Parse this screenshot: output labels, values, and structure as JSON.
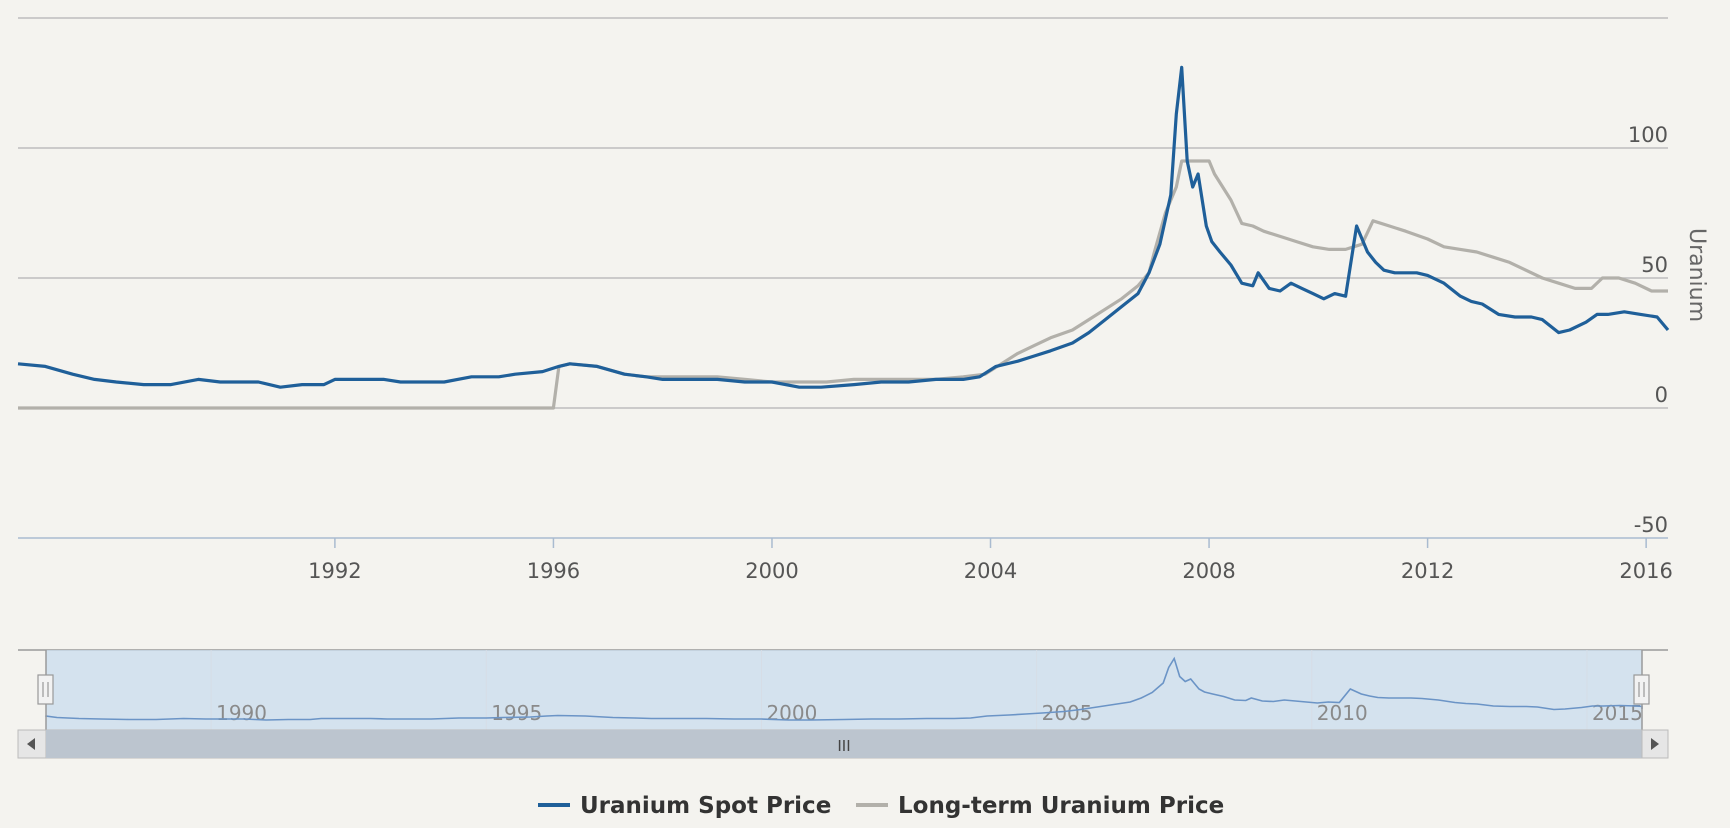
{
  "chart_data": {
    "type": "line",
    "title": "",
    "xlabel": "",
    "ylabel": "Uranium",
    "xlim": [
      1986.2,
      2016.4
    ],
    "ylim": [
      -50,
      150
    ],
    "x_ticks": [
      "1992",
      "1996",
      "2000",
      "2004",
      "2008",
      "2012",
      "2016"
    ],
    "y_ticks": [
      "100",
      "50",
      "0",
      "-50"
    ],
    "legend_position": "bottom-center",
    "navigator": {
      "x_ticks": [
        "1990",
        "1995",
        "2000",
        "2005",
        "2010",
        "2015"
      ],
      "scroll_handle": "III"
    },
    "series": [
      {
        "name": "Uranium Spot Price",
        "color": "#1f5f99",
        "x": [
          1986.2,
          1986.7,
          1987.2,
          1987.6,
          1988.0,
          1988.5,
          1989.0,
          1989.5,
          1989.9,
          1990.3,
          1990.6,
          1990.8,
          1991.0,
          1991.4,
          1991.8,
          1992.0,
          1992.5,
          1992.9,
          1993.2,
          1993.6,
          1994.0,
          1994.5,
          1995.0,
          1995.3,
          1995.8,
          1996.1,
          1996.3,
          1996.8,
          1997.3,
          1997.7,
          1998.0,
          1998.5,
          1999.0,
          1999.5,
          2000.0,
          2000.5,
          2000.9,
          2001.5,
          2002.0,
          2002.5,
          2003.0,
          2003.5,
          2003.8,
          2004.1,
          2004.5,
          2004.8,
          2005.1,
          2005.5,
          2005.8,
          2006.1,
          2006.4,
          2006.7,
          2006.9,
          2007.1,
          2007.3,
          2007.4,
          2007.5,
          2007.6,
          2007.7,
          2007.8,
          2007.95,
          2008.05,
          2008.2,
          2008.4,
          2008.6,
          2008.8,
          2008.9,
          2009.1,
          2009.3,
          2009.5,
          2009.7,
          2009.9,
          2010.1,
          2010.3,
          2010.5,
          2010.7,
          2010.9,
          2011.05,
          2011.2,
          2011.4,
          2011.6,
          2011.8,
          2012.0,
          2012.3,
          2012.6,
          2012.8,
          2013.0,
          2013.3,
          2013.6,
          2013.9,
          2014.1,
          2014.4,
          2014.6,
          2014.9,
          2015.1,
          2015.3,
          2015.6,
          2015.9,
          2016.2,
          2016.4
        ],
        "values": [
          17,
          16,
          13,
          11,
          10,
          9,
          9,
          11,
          10,
          10,
          10,
          9,
          8,
          9,
          9,
          11,
          11,
          11,
          10,
          10,
          10,
          12,
          12,
          13,
          14,
          16,
          17,
          16,
          13,
          12,
          11,
          11,
          11,
          10,
          10,
          8,
          8,
          9,
          10,
          10,
          11,
          11,
          12,
          16,
          18,
          20,
          22,
          25,
          29,
          34,
          39,
          44,
          52,
          63,
          82,
          113,
          131,
          95,
          85,
          90,
          70,
          64,
          60,
          55,
          48,
          47,
          52,
          46,
          45,
          48,
          46,
          44,
          42,
          44,
          43,
          70,
          60,
          56,
          53,
          52,
          52,
          52,
          51,
          48,
          43,
          41,
          40,
          36,
          35,
          35,
          34,
          29,
          30,
          33,
          36,
          36,
          37,
          36,
          35,
          30
        ]
      },
      {
        "name": "Long-term Uranium Price",
        "color": "#b2b0aa",
        "x": [
          1986.2,
          1996.0,
          1996.1,
          1996.3,
          1996.8,
          1997.3,
          1997.7,
          1998.0,
          1998.5,
          1999.0,
          1999.5,
          2000.0,
          2000.5,
          2001.0,
          2001.5,
          2002.0,
          2002.5,
          2003.0,
          2003.5,
          2003.9,
          2004.2,
          2004.5,
          2004.8,
          2005.1,
          2005.5,
          2005.8,
          2006.1,
          2006.4,
          2006.7,
          2006.9,
          2007.0,
          2007.2,
          2007.4,
          2007.5,
          2008.0,
          2008.1,
          2008.4,
          2008.6,
          2008.8,
          2009.0,
          2009.3,
          2009.6,
          2009.9,
          2010.2,
          2010.5,
          2010.8,
          2011.0,
          2011.3,
          2011.6,
          2012.0,
          2012.3,
          2012.6,
          2012.9,
          2013.2,
          2013.5,
          2013.8,
          2014.1,
          2014.4,
          2014.7,
          2015.0,
          2015.2,
          2015.5,
          2015.8,
          2016.1,
          2016.4
        ],
        "values": [
          0,
          0,
          16,
          17,
          16,
          13,
          12,
          12,
          12,
          12,
          11,
          10,
          10,
          10,
          11,
          11,
          11,
          11,
          12,
          13,
          17,
          21,
          24,
          27,
          30,
          34,
          38,
          42,
          47,
          52,
          60,
          75,
          85,
          95,
          95,
          90,
          80,
          71,
          70,
          68,
          66,
          64,
          62,
          61,
          61,
          63,
          72,
          70,
          68,
          65,
          62,
          61,
          60,
          58,
          56,
          53,
          50,
          48,
          46,
          46,
          50,
          50,
          48,
          45,
          45
        ]
      }
    ]
  }
}
